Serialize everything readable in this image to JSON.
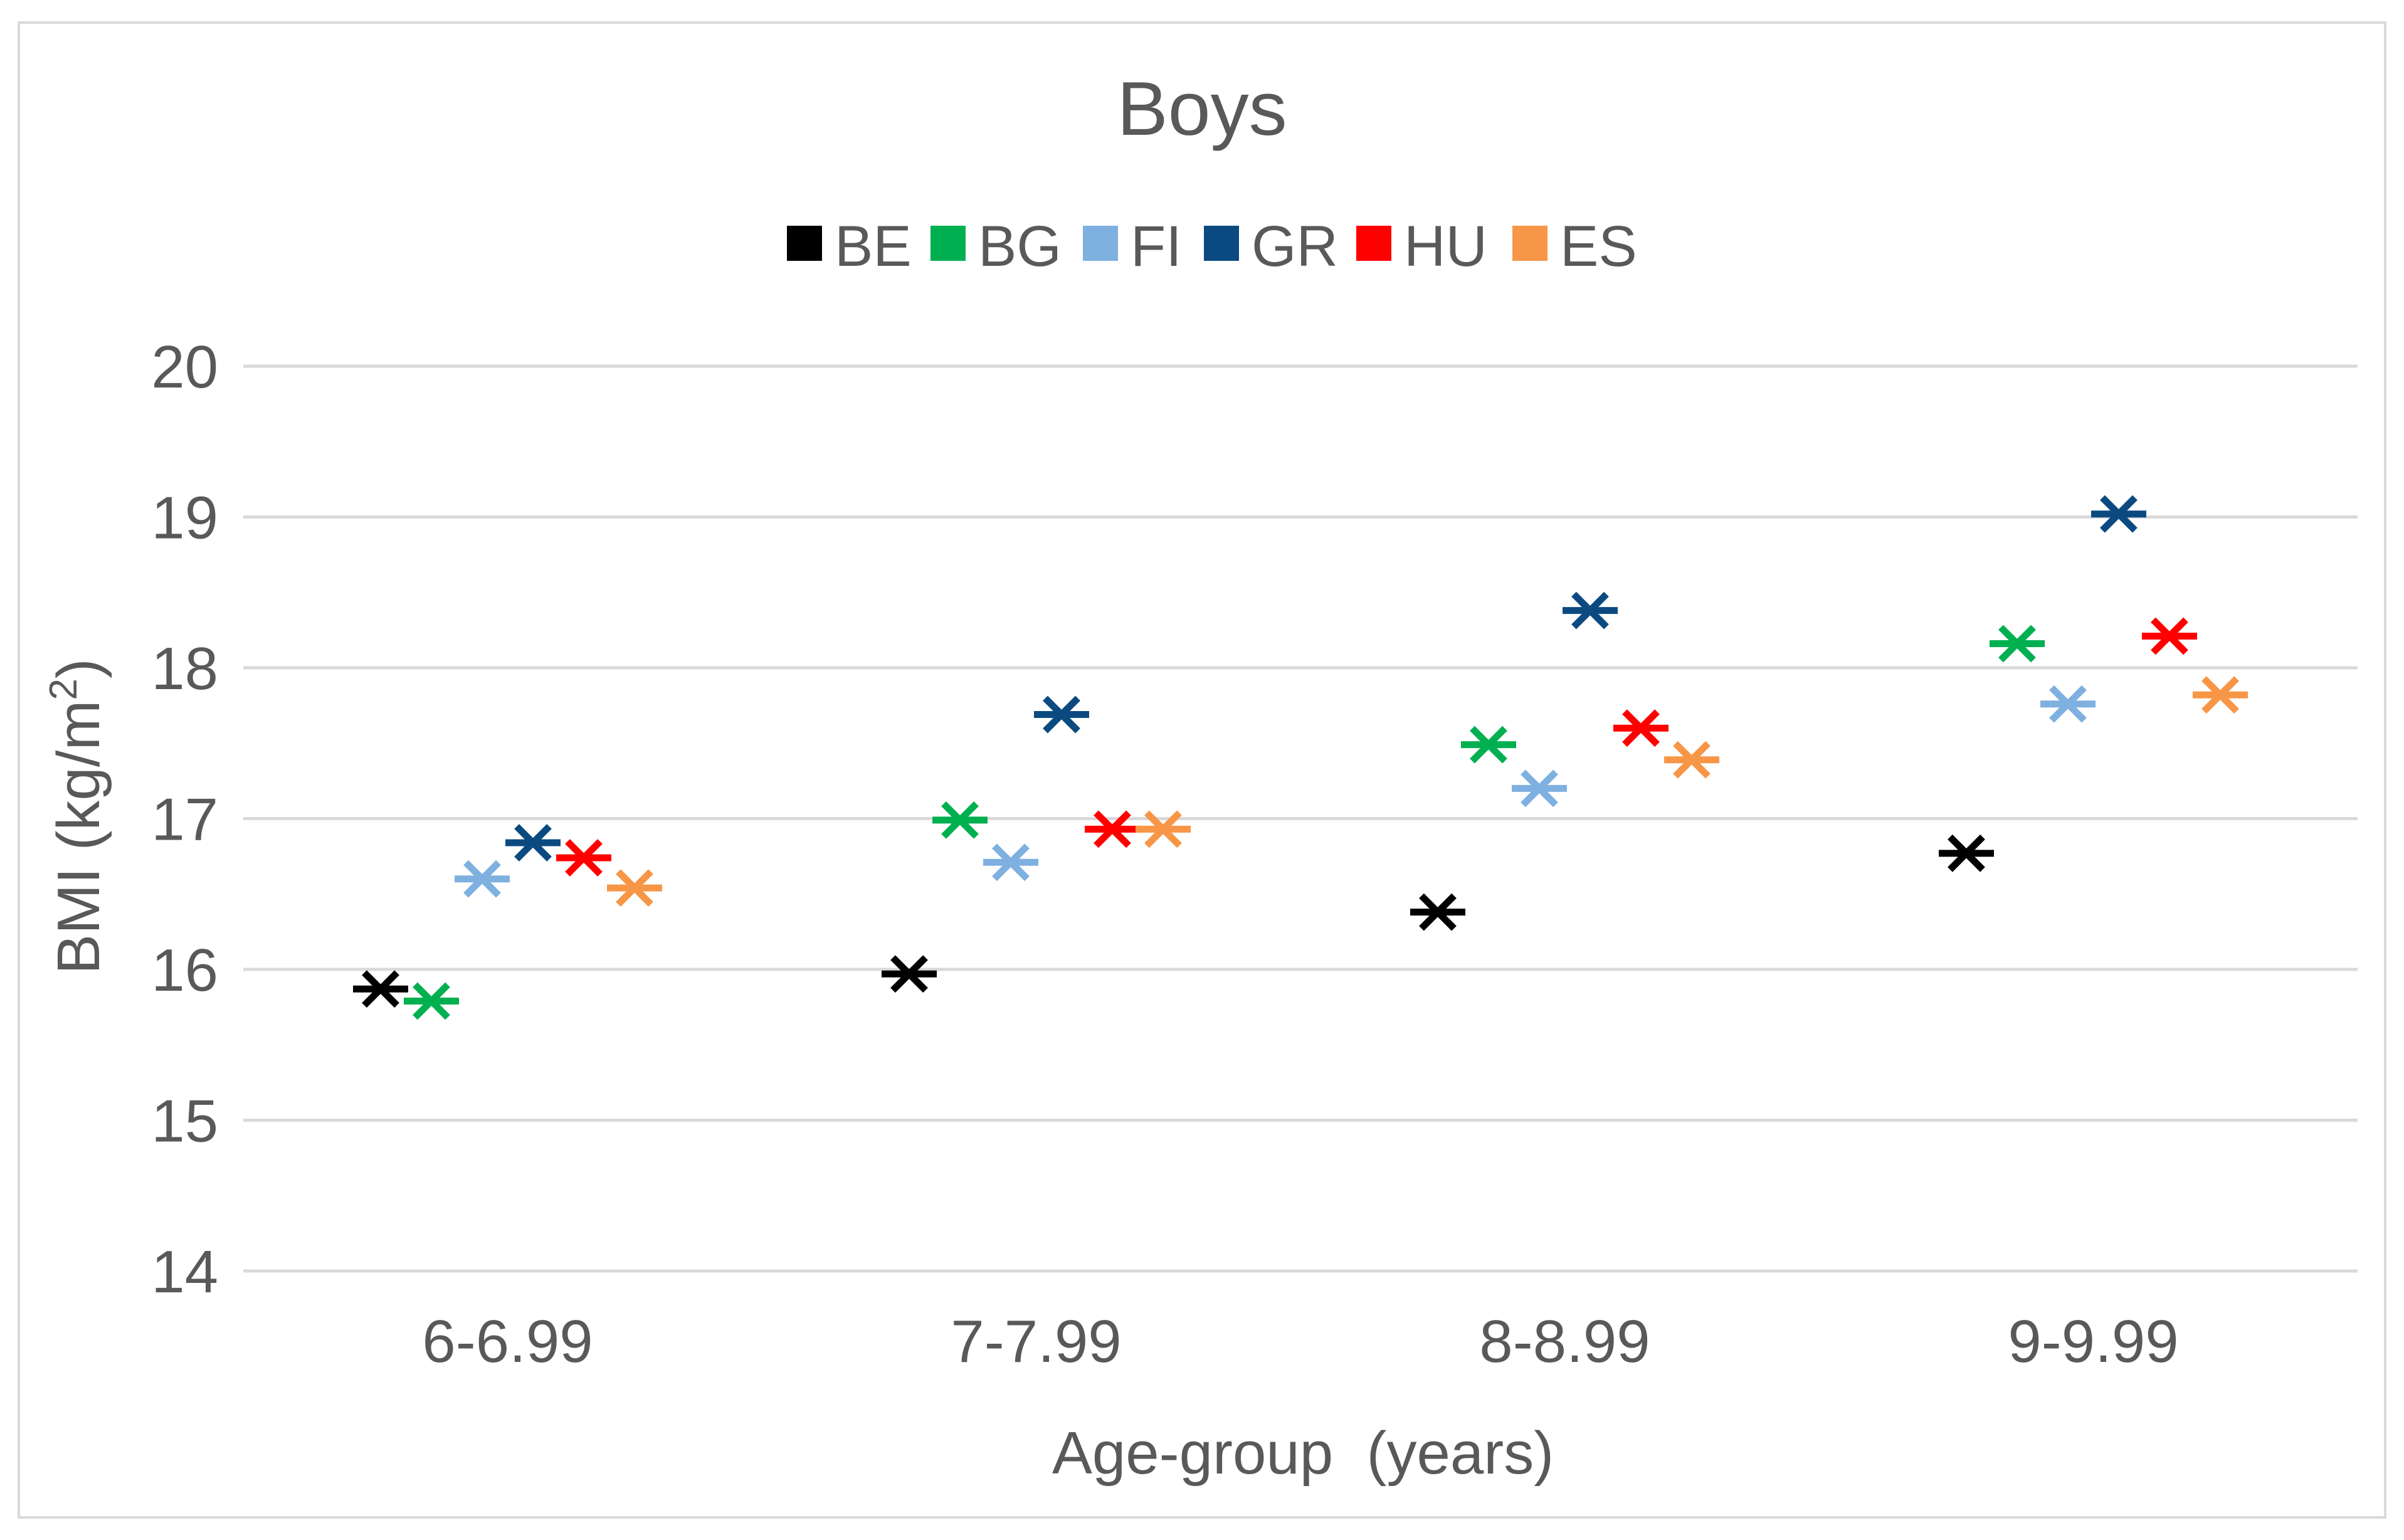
{
  "chart_data": {
    "type": "scatter",
    "title": "Boys",
    "xlabel": "Age-group  (years)",
    "ylabel_main": "BMI (kg/m",
    "ylabel_sup": "2",
    "ylabel_close": ")",
    "ylim": [
      14,
      20
    ],
    "yticks": [
      "14",
      "15",
      "16",
      "17",
      "18",
      "19",
      "20"
    ],
    "gridlines": true,
    "legend_position": "top",
    "categories": [
      "6-6.99",
      "7-7.99",
      "8-8.99",
      "9-9.99"
    ],
    "series": [
      {
        "name": "BE",
        "color": "#000000",
        "values": [
          15.87,
          15.97,
          16.38,
          16.77
        ]
      },
      {
        "name": "BG",
        "color": "#00b050",
        "values": [
          15.79,
          16.99,
          17.49,
          18.16
        ]
      },
      {
        "name": "FI",
        "color": "#7eb0e0",
        "values": [
          16.6,
          16.71,
          17.2,
          17.76
        ]
      },
      {
        "name": "GR",
        "color": "#0b4a80",
        "values": [
          16.84,
          17.69,
          18.38,
          19.02
        ]
      },
      {
        "name": "HU",
        "color": "#ff0000",
        "values": [
          16.74,
          16.93,
          17.6,
          18.21
        ]
      },
      {
        "name": "ES",
        "color": "#f79646",
        "values": [
          16.54,
          16.93,
          17.39,
          17.82
        ]
      }
    ]
  }
}
